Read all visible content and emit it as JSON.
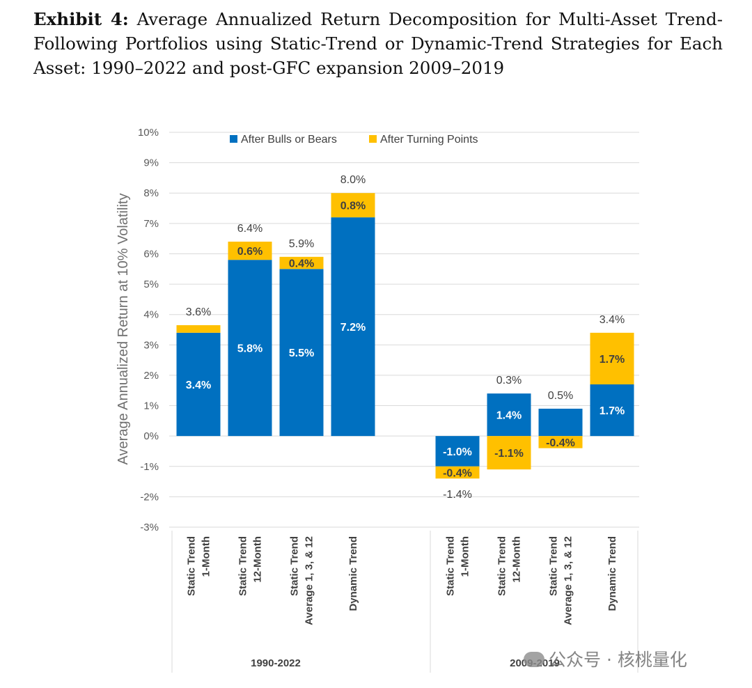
{
  "caption": {
    "label": "Exhibit 4:",
    "text": "Average Annualized Return Decomposition for Multi-Asset Trend- Following Portfolios using Static-Trend or Dynamic-Trend Strategies for Each Asset: 1990–2022 and post-GFC expansion 2009–2019"
  },
  "watermark": {
    "text": "公众号 · 核桃量化"
  },
  "colors": {
    "bulls": "#0070C0",
    "turning": "#FFC000",
    "grid": "#D9D9D9",
    "axis_text": "#595959"
  },
  "chart_data": {
    "type": "bar",
    "stacked": true,
    "title": "",
    "ylabel": "Average Annualized Return at 10% Volatility",
    "xlabel": "",
    "ylim": [
      -3,
      10
    ],
    "yticks": [
      -3,
      -2,
      -1,
      0,
      1,
      2,
      3,
      4,
      5,
      6,
      7,
      8,
      9,
      10
    ],
    "ytick_labels": [
      "-3%",
      "-2%",
      "-1%",
      "0%",
      "1%",
      "2%",
      "3%",
      "4%",
      "5%",
      "6%",
      "7%",
      "8%",
      "9%",
      "10%"
    ],
    "grid": true,
    "legend_position": "top",
    "categories": [
      [
        "Static Trend",
        "1-Month"
      ],
      [
        "Static Trend",
        "12-Month"
      ],
      [
        "Static Trend",
        "Average 1, 3, & 12"
      ],
      [
        "Dynamic Trend"
      ],
      [
        "Static Trend",
        "1-Month"
      ],
      [
        "Static Trend",
        "12-Month"
      ],
      [
        "Static Trend",
        "Average 1, 3, & 12"
      ],
      [
        "Dynamic Trend"
      ]
    ],
    "groups": [
      {
        "label": "1990-2022",
        "start": 0,
        "end": 3
      },
      {
        "label": "2009-2019",
        "start": 4,
        "end": 7
      }
    ],
    "series": [
      {
        "name": "After Bulls or Bears",
        "values": [
          3.4,
          5.8,
          5.5,
          7.2,
          -1.0,
          1.4,
          0.9,
          1.7
        ],
        "labels": [
          "3.4%",
          "5.8%",
          "5.5%",
          "7.2%",
          "-1.0%",
          "1.4%",
          "",
          "1.7%"
        ]
      },
      {
        "name": "After Turning Points",
        "values": [
          0.25,
          0.6,
          0.4,
          0.8,
          -0.4,
          -1.1,
          -0.4,
          1.7
        ],
        "labels": [
          "",
          "0.6%",
          "0.4%",
          "0.8%",
          "-0.4%",
          "-1.1%",
          "-0.4%",
          "1.7%"
        ]
      }
    ],
    "totals": [
      "3.6%",
      "6.4%",
      "5.9%",
      "8.0%",
      "-1.4%",
      "0.3%",
      "0.5%",
      "3.4%"
    ]
  }
}
